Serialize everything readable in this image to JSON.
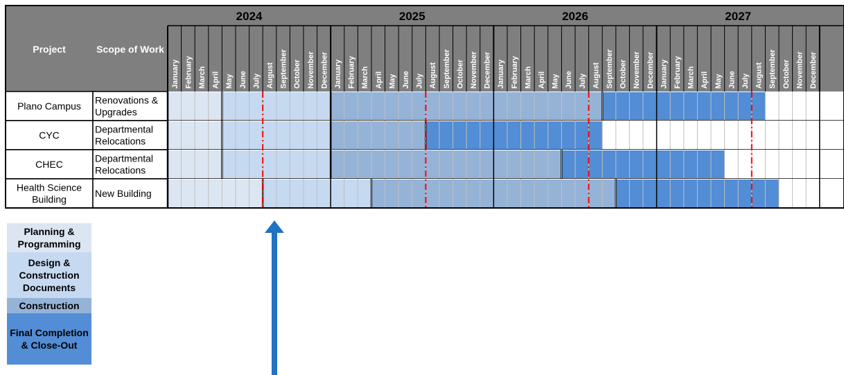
{
  "chart_data": {
    "type": "gantt",
    "header": {
      "project_label": "Project",
      "scope_label": "Scope of Work",
      "years": [
        "2024",
        "2025",
        "2026",
        "2027"
      ],
      "months": [
        "January",
        "February",
        "March",
        "April",
        "May",
        "June",
        "July",
        "August",
        "September",
        "October",
        "November",
        "December"
      ]
    },
    "phases": [
      {
        "name": "Planning & Programming",
        "color": "#DCE6F2"
      },
      {
        "name": "Design & Construction Documents",
        "color": "#C5D9F1"
      },
      {
        "name": "Construction",
        "color": "#95B3D7"
      },
      {
        "name": "Final Completion & Close-Out",
        "color": "#538DD5"
      }
    ],
    "rows": [
      {
        "project": "Plano Campus",
        "scope": "Renovations & Upgrades",
        "segments": [
          {
            "phase": 0,
            "start": "2024-01",
            "end": "2024-04"
          },
          {
            "phase": 1,
            "start": "2024-05",
            "end": "2024-12"
          },
          {
            "phase": 2,
            "start": "2025-01",
            "end": "2026-08"
          },
          {
            "phase": 3,
            "start": "2026-09",
            "end": "2027-08"
          }
        ]
      },
      {
        "project": "CYC",
        "scope": "Departmental Relocations",
        "segments": [
          {
            "phase": 0,
            "start": "2024-01",
            "end": "2024-04"
          },
          {
            "phase": 1,
            "start": "2024-05",
            "end": "2024-12"
          },
          {
            "phase": 2,
            "start": "2025-01",
            "end": "2025-07"
          },
          {
            "phase": 3,
            "start": "2025-08",
            "end": "2026-08"
          }
        ]
      },
      {
        "project": "CHEC",
        "scope": "Departmental Relocations",
        "segments": [
          {
            "phase": 0,
            "start": "2024-01",
            "end": "2024-04"
          },
          {
            "phase": 1,
            "start": "2024-05",
            "end": "2024-12"
          },
          {
            "phase": 2,
            "start": "2025-01",
            "end": "2026-05"
          },
          {
            "phase": 3,
            "start": "2026-06",
            "end": "2027-05"
          }
        ]
      },
      {
        "project": "Health Science Building",
        "scope": "New Building",
        "segments": [
          {
            "phase": 0,
            "start": "2024-01",
            "end": "2024-07"
          },
          {
            "phase": 1,
            "start": "2024-08",
            "end": "2025-03"
          },
          {
            "phase": 2,
            "start": "2025-04",
            "end": "2026-09"
          },
          {
            "phase": 3,
            "start": "2026-10",
            "end": "2027-09"
          }
        ]
      }
    ],
    "markers": [
      "2024-07",
      "2025-07",
      "2026-07",
      "2027-07"
    ],
    "arrow_month": "2024-08",
    "colors": {
      "header_bg": "#7F7F7F",
      "marker": "#FF0000",
      "arrow": "#1F72C4",
      "grid": "#BFBFBF"
    }
  }
}
